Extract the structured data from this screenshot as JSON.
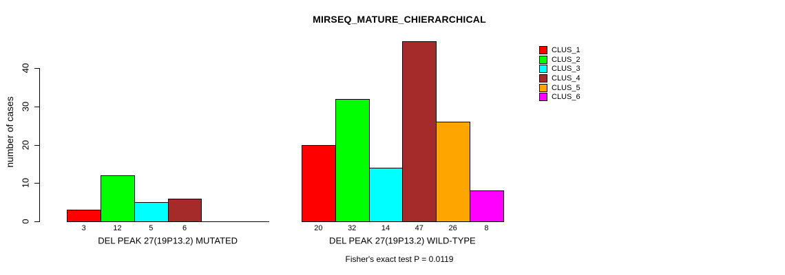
{
  "title": "MIRSEQ_MATURE_CHIERARCHICAL",
  "footnote": "Fisher's exact test P = 0.0119",
  "y_axis": {
    "label": "number of cases",
    "ticks": [
      0,
      10,
      20,
      30,
      40
    ]
  },
  "legend": {
    "entries": [
      {
        "label": "CLUS_1",
        "color": "#FF0000"
      },
      {
        "label": "CLUS_2",
        "color": "#00FF00"
      },
      {
        "label": "CLUS_3",
        "color": "#00FFFF"
      },
      {
        "label": "CLUS_4",
        "color": "#A52A2A"
      },
      {
        "label": "CLUS_5",
        "color": "#FFA500"
      },
      {
        "label": "CLUS_6",
        "color": "#FF00FF"
      }
    ]
  },
  "chart_data": {
    "type": "bar",
    "title": "MIRSEQ_MATURE_CHIERARCHICAL",
    "ylabel": "number of cases",
    "xlabel": "",
    "ylim": [
      0,
      47
    ],
    "yticks": [
      0,
      10,
      20,
      30,
      40
    ],
    "grid": false,
    "legend_position": "top-right",
    "categories": [
      "DEL PEAK 27(19P13.2) MUTATED",
      "DEL PEAK 27(19P13.2) WILD-TYPE"
    ],
    "series": [
      {
        "name": "CLUS_1",
        "color": "#FF0000",
        "values": [
          3,
          20
        ]
      },
      {
        "name": "CLUS_2",
        "color": "#00FF00",
        "values": [
          12,
          32
        ]
      },
      {
        "name": "CLUS_3",
        "color": "#00FFFF",
        "values": [
          5,
          14
        ]
      },
      {
        "name": "CLUS_4",
        "color": "#A52A2A",
        "values": [
          6,
          47
        ]
      },
      {
        "name": "CLUS_5",
        "color": "#FFA500",
        "values": [
          0,
          26
        ]
      },
      {
        "name": "CLUS_6",
        "color": "#FF00FF",
        "values": [
          0,
          8
        ]
      }
    ],
    "bar_value_labels_shown": true,
    "zero_value_bars_hidden": true,
    "annotation": "Fisher's exact test P = 0.0119"
  }
}
